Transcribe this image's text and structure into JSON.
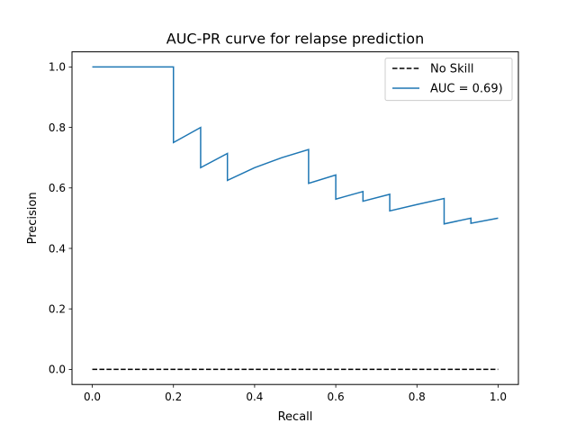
{
  "chart_data": {
    "type": "line",
    "title": "AUC-PR curve for relapse prediction",
    "xlabel": "Recall",
    "ylabel": "Precision",
    "xlim": [
      -0.05,
      1.05
    ],
    "ylim": [
      -0.05,
      1.05
    ],
    "x_ticks": [
      "0.0",
      "0.2",
      "0.4",
      "0.6",
      "0.8",
      "1.0"
    ],
    "y_ticks": [
      "0.0",
      "0.2",
      "0.4",
      "0.6",
      "0.8",
      "1.0"
    ],
    "grid": false,
    "legend_position": "upper right",
    "series": [
      {
        "name": "No Skill",
        "style": "dashed",
        "color": "#000000",
        "x": [
          0,
          1
        ],
        "y": [
          0,
          0
        ]
      },
      {
        "name": "AUC = 0.69)",
        "style": "solid",
        "color": "#1f77b4",
        "x": [
          0.0,
          0.067,
          0.133,
          0.2,
          0.2,
          0.267,
          0.267,
          0.333,
          0.333,
          0.4,
          0.467,
          0.533,
          0.533,
          0.6,
          0.6,
          0.667,
          0.667,
          0.733,
          0.733,
          0.8,
          0.867,
          0.867,
          0.933,
          0.933,
          1.0
        ],
        "y": [
          1.0,
          1.0,
          1.0,
          1.0,
          0.75,
          0.8,
          0.667,
          0.714,
          0.625,
          0.667,
          0.7,
          0.727,
          0.615,
          0.643,
          0.563,
          0.588,
          0.556,
          0.579,
          0.524,
          0.545,
          0.565,
          0.481,
          0.5,
          0.483,
          0.5
        ]
      }
    ]
  }
}
